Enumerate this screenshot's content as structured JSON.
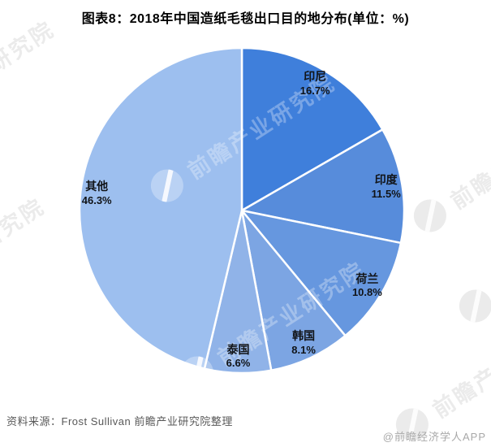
{
  "title": "图表8：2018年中国造纸毛毯出口目的地分布(单位：%)",
  "watermark": {
    "text": "前瞻产业研究院"
  },
  "footer": {
    "source": "资料来源：Frost Sullivan 前瞻产业研究院整理",
    "credit": "@前瞻经济学人APP"
  },
  "chart_data": {
    "type": "pie",
    "title": "图表8：2018年中国造纸毛毯出口目的地分布(单位：%)",
    "unit": "%",
    "start_angle_deg": 0,
    "direction": "clockwise",
    "labels": [
      "印尼",
      "印度",
      "荷兰",
      "韩国",
      "泰国",
      "其他"
    ],
    "values": [
      16.7,
      11.5,
      10.8,
      8.1,
      6.6,
      46.3
    ],
    "colors": [
      "#3F7FDB",
      "#578CDB",
      "#6697DF",
      "#7CA5E3",
      "#90B3E8",
      "#9DBFEF"
    ],
    "slice_border_color": "#ffffff",
    "label_color": "#111418",
    "legend": "none",
    "value_suffix": "%"
  }
}
